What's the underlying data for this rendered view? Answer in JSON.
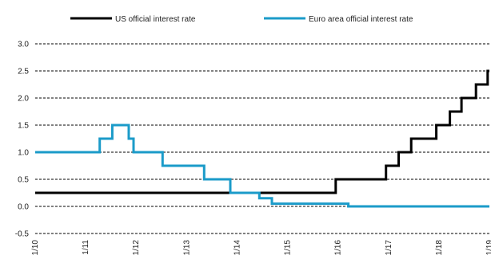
{
  "chart_data": {
    "type": "line",
    "title": "",
    "xlabel": "",
    "ylabel": "",
    "ylim": [
      -0.5,
      3.0
    ],
    "xlim": [
      "2010-01-01",
      "2019-01-01"
    ],
    "y_ticks": [
      "3.0",
      "2.5",
      "2.0",
      "1.5",
      "1.0",
      "0.5",
      "0.0",
      "-0.5"
    ],
    "x_tick_dates": [
      "2010-01-01",
      "2011-01-01",
      "2012-01-01",
      "2013-01-01",
      "2014-01-01",
      "2015-01-01",
      "2016-01-01",
      "2017-01-01",
      "2018-01-01",
      "2019-01-01"
    ],
    "x_tick_labels": [
      "1/10",
      "1/11",
      "1/12",
      "1/13",
      "1/14",
      "1/15",
      "1/16",
      "1/17",
      "1/18",
      "1/19"
    ],
    "grid": "horizontal dashed",
    "legend_position": "top",
    "series": [
      {
        "name": "US official interest rate",
        "color": "#000000",
        "step": true,
        "points": [
          [
            "2010-01-01",
            0.25
          ],
          [
            "2015-12-16",
            0.5
          ],
          [
            "2016-12-14",
            0.75
          ],
          [
            "2017-03-15",
            1.0
          ],
          [
            "2017-06-14",
            1.25
          ],
          [
            "2017-12-13",
            1.5
          ],
          [
            "2018-03-21",
            1.75
          ],
          [
            "2018-06-13",
            2.0
          ],
          [
            "2018-09-26",
            2.25
          ],
          [
            "2018-12-19",
            2.5
          ],
          [
            "2019-01-01",
            2.5
          ]
        ]
      },
      {
        "name": "Euro area official interest rate",
        "color": "#1b9bc9",
        "step": true,
        "points": [
          [
            "2010-01-01",
            1.0
          ],
          [
            "2011-04-13",
            1.25
          ],
          [
            "2011-07-13",
            1.5
          ],
          [
            "2011-11-09",
            1.25
          ],
          [
            "2011-12-14",
            1.0
          ],
          [
            "2012-07-11",
            0.75
          ],
          [
            "2013-05-08",
            0.5
          ],
          [
            "2013-11-13",
            0.25
          ],
          [
            "2014-06-11",
            0.15
          ],
          [
            "2014-09-10",
            0.05
          ],
          [
            "2016-03-16",
            0.0
          ],
          [
            "2019-01-01",
            0.0
          ]
        ]
      }
    ]
  }
}
